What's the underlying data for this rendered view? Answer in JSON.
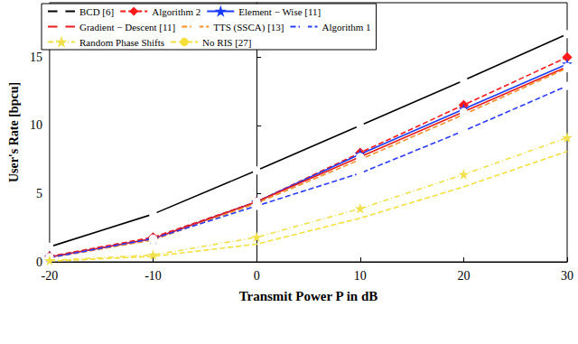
{
  "chart_data": {
    "type": "line",
    "x_label": "Transmit Power P in dB",
    "y_label": "User's Rate [bpcu]",
    "x": [
      -20,
      -10,
      0,
      10,
      20,
      30
    ],
    "xlim": [
      -20,
      30
    ],
    "xticks": [
      -20,
      -10,
      0,
      10,
      20,
      30
    ],
    "ylim": [
      0,
      19
    ],
    "yticks": [
      0,
      5,
      10,
      15
    ],
    "grid": false,
    "legend": "upper left",
    "series": [
      {
        "name": "BCD [6]",
        "color": "#000000",
        "marker": "circle",
        "line_style": "solid",
        "values": [
          1.1,
          3.5,
          6.7,
          10.0,
          13.3,
          16.7
        ]
      },
      {
        "name": "Algorithm 2",
        "color": "#ff1a1a",
        "marker": "diamond",
        "line_style": "dashed",
        "values": [
          0.4,
          1.8,
          4.4,
          8.0,
          11.5,
          15.0
        ]
      },
      {
        "name": "Element − Wise [11]",
        "color": "#1a3cff",
        "marker": "star",
        "line_style": "solid",
        "values": [
          0.35,
          1.7,
          4.4,
          7.9,
          11.2,
          14.5
        ]
      },
      {
        "name": "Gradient − Descent [11]",
        "color": "#e81c1c",
        "marker": "circle",
        "line_style": "solid",
        "values": [
          0.35,
          1.7,
          4.4,
          7.7,
          11.0,
          14.3
        ]
      },
      {
        "name": "TTS (SSCA) [13]",
        "color": "#f5902a",
        "marker": "circle",
        "line_style": "dashed",
        "values": [
          0.3,
          1.6,
          4.3,
          7.5,
          10.8,
          14.2
        ]
      },
      {
        "name": "Algorithm 1",
        "color": "#2a3cff",
        "marker": "circle",
        "line_style": "dashed",
        "values": [
          0.3,
          1.7,
          4.1,
          6.5,
          9.6,
          12.9
        ]
      },
      {
        "name": "Random Phase Shifts",
        "color": "#f2e04a",
        "marker": "star",
        "line_style": "dashdot",
        "values": [
          0.1,
          0.5,
          1.8,
          3.9,
          6.4,
          9.1
        ]
      },
      {
        "name": "No RIS [27]",
        "color": "#f5e03a",
        "marker": "none",
        "line_style": "dashed",
        "values": [
          0.05,
          0.4,
          1.3,
          3.2,
          5.5,
          8.1
        ]
      }
    ]
  }
}
